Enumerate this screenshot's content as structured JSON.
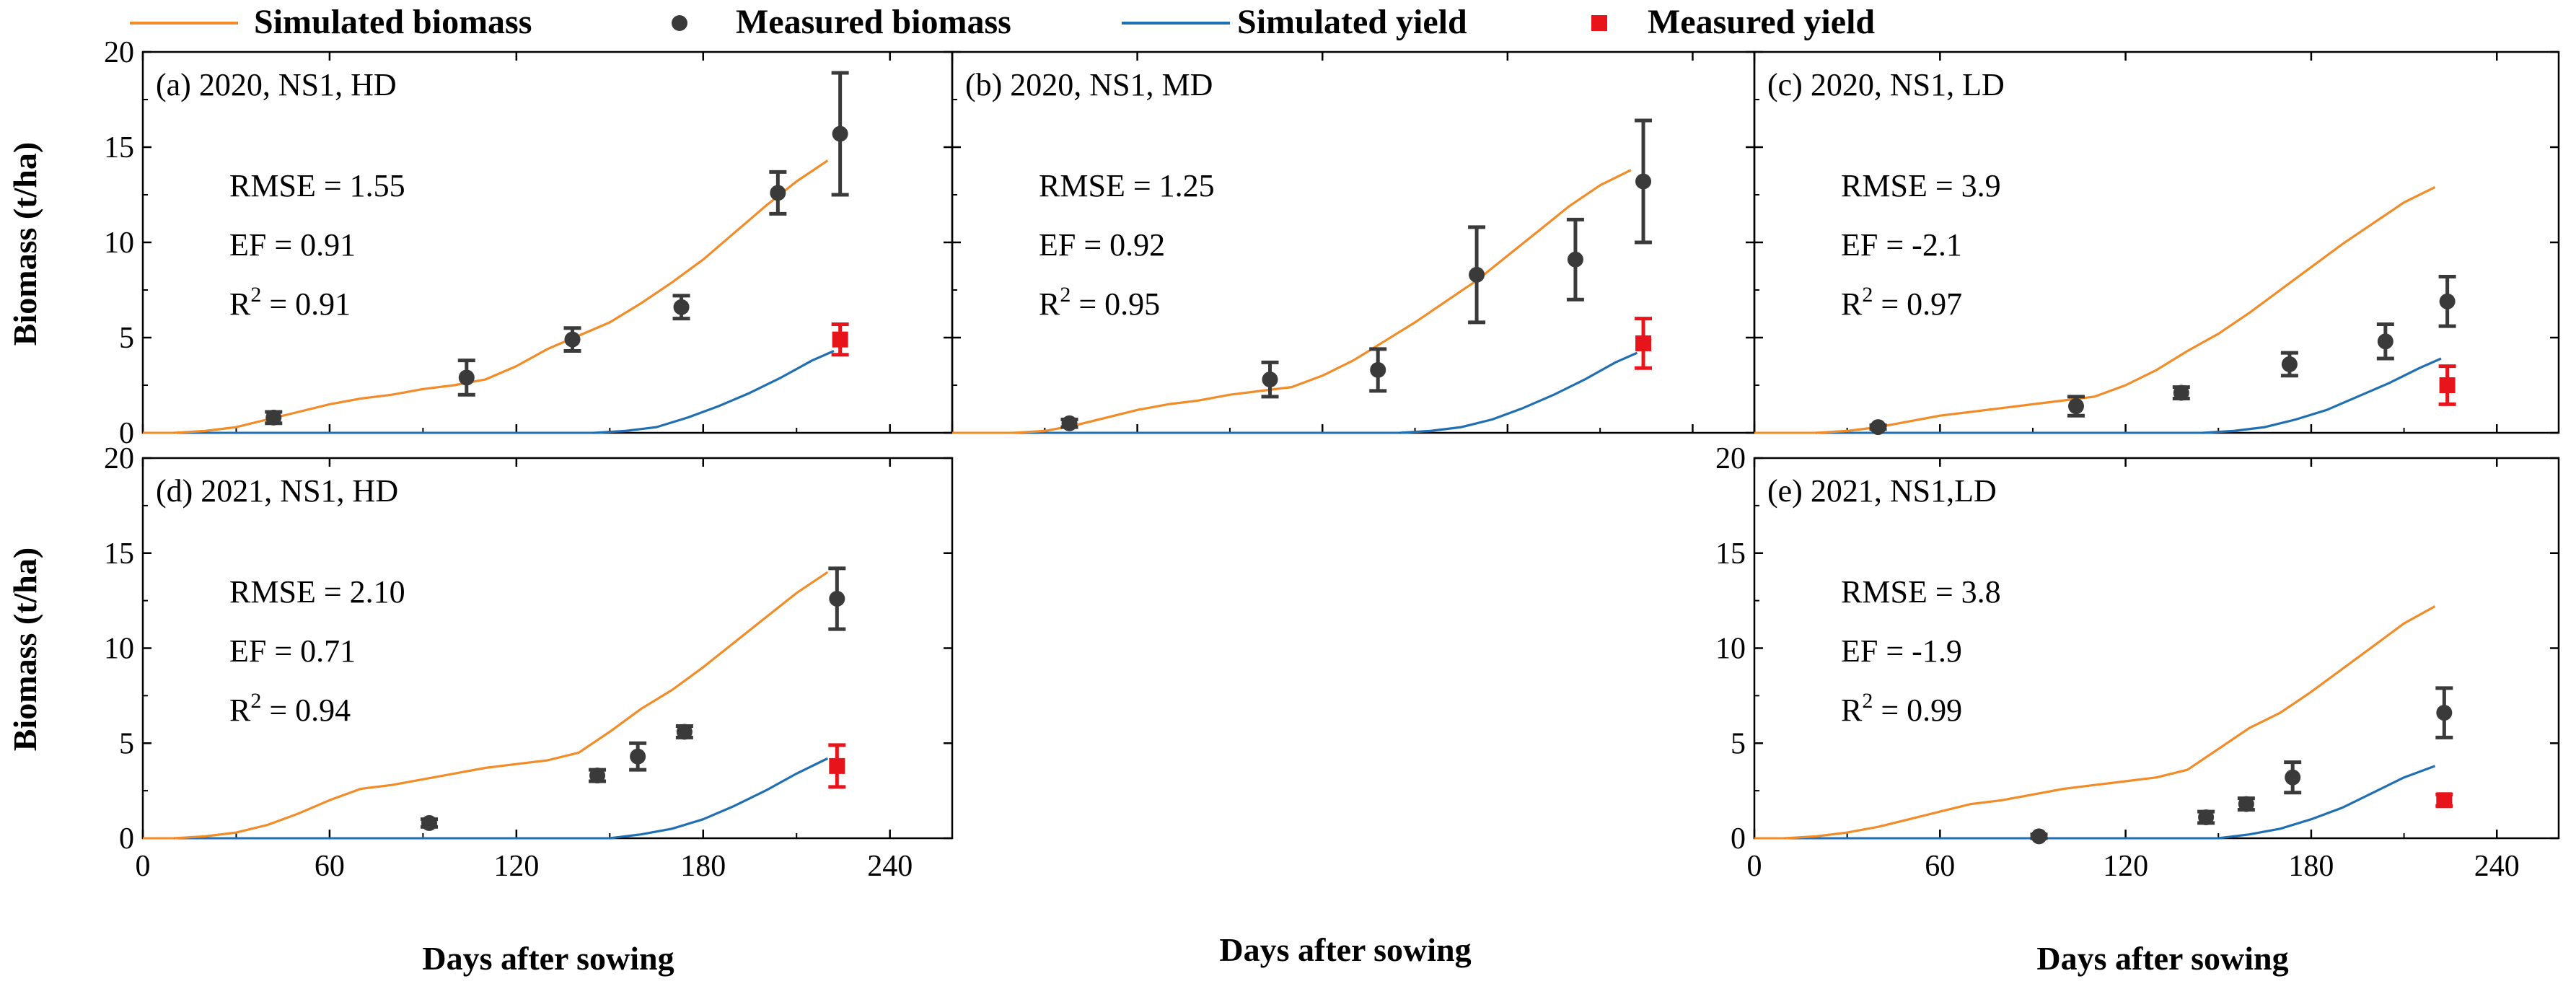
{
  "legend": {
    "simulated_biomass": "Simulated biomass",
    "measured_biomass": "Measured biomass",
    "simulated_yield": "Simulated yield",
    "measured_yield": "Measured yield"
  },
  "colors": {
    "simulated_biomass": "#F28C28",
    "measured_biomass": "#3A3A3A",
    "simulated_yield": "#1F6FB2",
    "measured_yield": "#E8141B"
  },
  "axis_labels": {
    "y": "Biomass (t/ha)",
    "x_left": "Days after sowing",
    "x_middle": "Days after sowing",
    "x_right": "Days after sowing"
  },
  "chart_data": [
    {
      "type": "line",
      "title": "(a) 2020, NS1, HD",
      "xlabel": "Days after sowing",
      "ylabel": "Biomass (t/ha)",
      "xlim": [
        0,
        260
      ],
      "ylim": [
        0,
        20
      ],
      "x_ticks": [
        0,
        60,
        120,
        180,
        240
      ],
      "y_ticks": [
        0,
        5,
        10,
        15,
        20
      ],
      "stats": [
        "RMSE = 1.55",
        "EF = 0.91",
        "R2 = 0.91"
      ],
      "simulated_biomass": {
        "x": [
          10,
          20,
          30,
          40,
          50,
          60,
          70,
          80,
          90,
          100,
          110,
          120,
          130,
          140,
          150,
          160,
          170,
          180,
          190,
          200,
          210,
          220
        ],
        "y": [
          0,
          0.1,
          0.3,
          0.7,
          1.1,
          1.5,
          1.8,
          2.0,
          2.3,
          2.5,
          2.8,
          3.5,
          4.4,
          5.1,
          5.8,
          6.8,
          7.9,
          9.1,
          10.5,
          11.9,
          13.2,
          14.3
        ]
      },
      "simulated_yield": {
        "x": [
          145,
          155,
          165,
          175,
          185,
          195,
          205,
          215,
          222
        ],
        "y": [
          0,
          0.1,
          0.3,
          0.8,
          1.4,
          2.1,
          2.9,
          3.8,
          4.3
        ]
      },
      "measured_biomass": [
        {
          "x": 42,
          "y": 0.8,
          "err": 0.3
        },
        {
          "x": 104,
          "y": 2.9,
          "err": 0.9
        },
        {
          "x": 138,
          "y": 4.9,
          "err": 0.6
        },
        {
          "x": 173,
          "y": 6.6,
          "err": 0.6
        },
        {
          "x": 204,
          "y": 12.6,
          "err": 1.1
        },
        {
          "x": 224,
          "y": 15.7,
          "err": 3.2
        }
      ],
      "measured_yield": [
        {
          "x": 224,
          "y": 4.9,
          "err": 0.8
        }
      ]
    },
    {
      "type": "line",
      "title": "(b) 2020, NS1, MD",
      "xlabel": "Days after sowing",
      "ylabel": "Biomass (t/ha)",
      "xlim": [
        0,
        260
      ],
      "ylim": [
        0,
        20
      ],
      "x_ticks": [
        0,
        60,
        120,
        180,
        240
      ],
      "y_ticks": [
        0,
        5,
        10,
        15,
        20
      ],
      "stats": [
        "RMSE = 1.25",
        "EF = 0.92",
        "R2 = 0.95"
      ],
      "simulated_biomass": {
        "x": [
          20,
          30,
          40,
          50,
          60,
          70,
          80,
          90,
          100,
          110,
          120,
          130,
          140,
          150,
          160,
          170,
          180,
          190,
          200,
          210,
          220
        ],
        "y": [
          0,
          0.1,
          0.4,
          0.8,
          1.2,
          1.5,
          1.7,
          2.0,
          2.2,
          2.4,
          3.0,
          3.8,
          4.8,
          5.8,
          6.9,
          8.0,
          9.3,
          10.6,
          11.9,
          13.0,
          13.8
        ]
      },
      "simulated_yield": {
        "x": [
          145,
          155,
          165,
          175,
          185,
          195,
          205,
          215,
          222
        ],
        "y": [
          0,
          0.1,
          0.3,
          0.7,
          1.3,
          2.0,
          2.8,
          3.7,
          4.2
        ]
      },
      "measured_biomass": [
        {
          "x": 38,
          "y": 0.5,
          "err": 0.2
        },
        {
          "x": 103,
          "y": 2.8,
          "err": 0.9
        },
        {
          "x": 138,
          "y": 3.3,
          "err": 1.1
        },
        {
          "x": 170,
          "y": 8.3,
          "err": 2.5
        },
        {
          "x": 202,
          "y": 9.1,
          "err": 2.1
        },
        {
          "x": 224,
          "y": 13.2,
          "err": 3.2
        }
      ],
      "measured_yield": [
        {
          "x": 224,
          "y": 4.7,
          "err": 1.3
        }
      ]
    },
    {
      "type": "line",
      "title": "(c) 2020, NS1, LD",
      "xlabel": "Days after sowing",
      "ylabel": "Biomass (t/ha)",
      "xlim": [
        0,
        260
      ],
      "ylim": [
        0,
        20
      ],
      "x_ticks": [
        0,
        60,
        120,
        180,
        240
      ],
      "y_ticks": [
        0,
        5,
        10,
        15,
        20
      ],
      "stats": [
        "RMSE = 3.9",
        "EF = -2.1",
        "R2 = 0.97"
      ],
      "simulated_biomass": {
        "x": [
          20,
          30,
          40,
          50,
          60,
          70,
          80,
          90,
          100,
          110,
          120,
          130,
          140,
          150,
          160,
          170,
          180,
          190,
          200,
          210,
          220
        ],
        "y": [
          0,
          0.1,
          0.3,
          0.6,
          0.9,
          1.1,
          1.3,
          1.5,
          1.7,
          1.9,
          2.5,
          3.3,
          4.3,
          5.2,
          6.3,
          7.5,
          8.7,
          9.9,
          11.0,
          12.1,
          12.9
        ]
      },
      "simulated_yield": {
        "x": [
          145,
          155,
          165,
          175,
          185,
          195,
          205,
          215,
          222
        ],
        "y": [
          0,
          0.1,
          0.3,
          0.7,
          1.2,
          1.9,
          2.6,
          3.4,
          3.9
        ]
      },
      "measured_biomass": [
        {
          "x": 40,
          "y": 0.3,
          "err": 0.1
        },
        {
          "x": 104,
          "y": 1.4,
          "err": 0.5
        },
        {
          "x": 138,
          "y": 2.1,
          "err": 0.3
        },
        {
          "x": 173,
          "y": 3.6,
          "err": 0.6
        },
        {
          "x": 204,
          "y": 4.8,
          "err": 0.9
        },
        {
          "x": 224,
          "y": 6.9,
          "err": 1.3
        }
      ],
      "measured_yield": [
        {
          "x": 224,
          "y": 2.5,
          "err": 1.0
        }
      ]
    },
    {
      "type": "line",
      "title": "(d) 2021, NS1, HD",
      "xlabel": "Days after sowing",
      "ylabel": "Biomass (t/ha)",
      "xlim": [
        0,
        260
      ],
      "ylim": [
        0,
        20
      ],
      "x_ticks": [
        0,
        60,
        120,
        180,
        240
      ],
      "y_ticks": [
        0,
        5,
        10,
        15,
        20
      ],
      "stats": [
        "RMSE = 2.10",
        "EF = 0.71",
        "R2 = 0.94"
      ],
      "simulated_biomass": {
        "x": [
          10,
          20,
          30,
          40,
          50,
          60,
          70,
          80,
          90,
          100,
          110,
          120,
          130,
          140,
          150,
          160,
          170,
          180,
          190,
          200,
          210,
          220
        ],
        "y": [
          0,
          0.1,
          0.3,
          0.7,
          1.3,
          2.0,
          2.6,
          2.8,
          3.1,
          3.4,
          3.7,
          3.9,
          4.1,
          4.5,
          5.6,
          6.8,
          7.8,
          9.0,
          10.3,
          11.6,
          12.9,
          14.0
        ]
      },
      "simulated_yield": {
        "x": [
          150,
          160,
          170,
          180,
          190,
          200,
          210,
          220
        ],
        "y": [
          0,
          0.2,
          0.5,
          1.0,
          1.7,
          2.5,
          3.4,
          4.2
        ]
      },
      "measured_biomass": [
        {
          "x": 92,
          "y": 0.8,
          "err": 0.2
        },
        {
          "x": 146,
          "y": 3.3,
          "err": 0.3
        },
        {
          "x": 159,
          "y": 4.3,
          "err": 0.7
        },
        {
          "x": 174,
          "y": 5.6,
          "err": 0.3
        },
        {
          "x": 223,
          "y": 12.6,
          "err": 1.6
        }
      ],
      "measured_yield": [
        {
          "x": 223,
          "y": 3.8,
          "err": 1.1
        }
      ]
    },
    {
      "type": "line",
      "title": "(e) 2021, NS1,LD",
      "xlabel": "Days after sowing",
      "ylabel": "Biomass (t/ha)",
      "xlim": [
        0,
        260
      ],
      "ylim": [
        0,
        20
      ],
      "x_ticks": [
        0,
        60,
        120,
        180,
        240
      ],
      "y_ticks": [
        0,
        5,
        10,
        15,
        20
      ],
      "stats": [
        "RMSE = 3.8",
        "EF = -1.9",
        "R2 = 0.99"
      ],
      "simulated_biomass": {
        "x": [
          10,
          20,
          30,
          40,
          50,
          60,
          70,
          80,
          90,
          100,
          110,
          120,
          130,
          140,
          150,
          160,
          170,
          180,
          190,
          200,
          210,
          220
        ],
        "y": [
          0,
          0.1,
          0.3,
          0.6,
          1.0,
          1.4,
          1.8,
          2.0,
          2.3,
          2.6,
          2.8,
          3.0,
          3.2,
          3.6,
          4.7,
          5.8,
          6.6,
          7.7,
          8.9,
          10.1,
          11.3,
          12.2
        ]
      },
      "simulated_yield": {
        "x": [
          150,
          160,
          170,
          180,
          190,
          200,
          210,
          220
        ],
        "y": [
          0,
          0.2,
          0.5,
          1.0,
          1.6,
          2.4,
          3.2,
          3.8
        ]
      },
      "measured_biomass": [
        {
          "x": 92,
          "y": 0.1,
          "err": 0.1
        },
        {
          "x": 146,
          "y": 1.1,
          "err": 0.3
        },
        {
          "x": 159,
          "y": 1.8,
          "err": 0.3
        },
        {
          "x": 174,
          "y": 3.2,
          "err": 0.8
        },
        {
          "x": 223,
          "y": 6.6,
          "err": 1.3
        }
      ],
      "measured_yield": [
        {
          "x": 223,
          "y": 2.0,
          "err": 0.3
        }
      ]
    }
  ]
}
